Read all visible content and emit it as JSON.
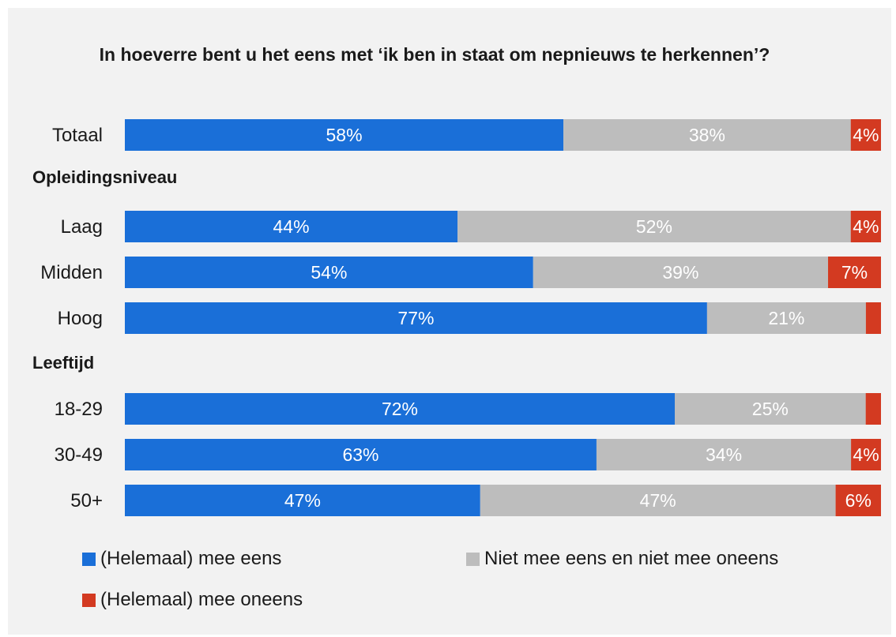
{
  "chart_data": {
    "type": "bar",
    "orientation": "horizontal",
    "stacked": true,
    "title": "In hoeverre bent u het eens met ‘ik ben in staat om nepnieuws te herkennen’?",
    "categories": [
      "Totaal",
      "Laag",
      "Midden",
      "Hoog",
      "18-29",
      "30-49",
      "50+"
    ],
    "groups": [
      {
        "label": "Opleidingsniveau",
        "categories": [
          "Laag",
          "Midden",
          "Hoog"
        ]
      },
      {
        "label": "Leeftijd",
        "categories": [
          "18-29",
          "30-49",
          "50+"
        ]
      }
    ],
    "series": [
      {
        "name": "(Helemaal) mee eens",
        "color": "#1a6fd8",
        "values": [
          58,
          44,
          54,
          77,
          72,
          63,
          47
        ]
      },
      {
        "name": "Niet mee eens en niet mee oneens",
        "color": "#bdbdbd",
        "values": [
          38,
          52,
          39,
          21,
          25,
          34,
          47
        ]
      },
      {
        "name": "(Helemaal) mee oneens",
        "color": "#d33a21",
        "values": [
          4,
          4,
          7,
          2,
          2,
          4,
          6
        ]
      }
    ],
    "data_labels": [
      [
        "58%",
        "44%",
        "54%",
        "77%",
        "72%",
        "63%",
        "47%"
      ],
      [
        "38%",
        "52%",
        "39%",
        "21%",
        "25%",
        "34%",
        "47%"
      ],
      [
        "4%",
        "4%",
        "7%",
        "",
        "",
        "4%",
        "6%"
      ]
    ],
    "xlim": [
      0,
      100
    ],
    "unit": "%",
    "grid": false,
    "legend_position": "bottom"
  }
}
